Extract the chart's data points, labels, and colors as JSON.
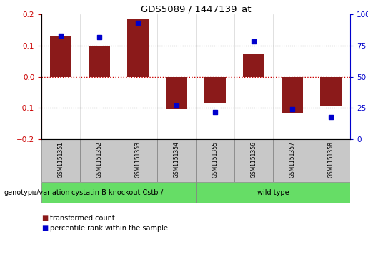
{
  "title": "GDS5089 / 1447139_at",
  "samples": [
    "GSM1151351",
    "GSM1151352",
    "GSM1151353",
    "GSM1151354",
    "GSM1151355",
    "GSM1151356",
    "GSM1151357",
    "GSM1151358"
  ],
  "bar_values": [
    0.13,
    0.1,
    0.185,
    -0.105,
    -0.085,
    0.075,
    -0.115,
    -0.095
  ],
  "percentile_values": [
    83,
    82,
    93,
    27,
    22,
    78,
    24,
    18
  ],
  "group1_indices": [
    0,
    1,
    2,
    3
  ],
  "group2_indices": [
    4,
    5,
    6,
    7
  ],
  "group1_label": "cystatin B knockout Cstb-/-",
  "group2_label": "wild type",
  "group_row_label": "genotype/variation",
  "bar_color": "#8B1A1A",
  "dot_color": "#0000CC",
  "zero_line_color": "#CC0000",
  "ylim": [
    -0.2,
    0.2
  ],
  "y_left_ticks": [
    -0.2,
    -0.1,
    0.0,
    0.1,
    0.2
  ],
  "group1_bg": "#66DD66",
  "group2_bg": "#66DD66",
  "sample_bg": "#C8C8C8",
  "legend_bar_label": "transformed count",
  "legend_dot_label": "percentile rank within the sample"
}
